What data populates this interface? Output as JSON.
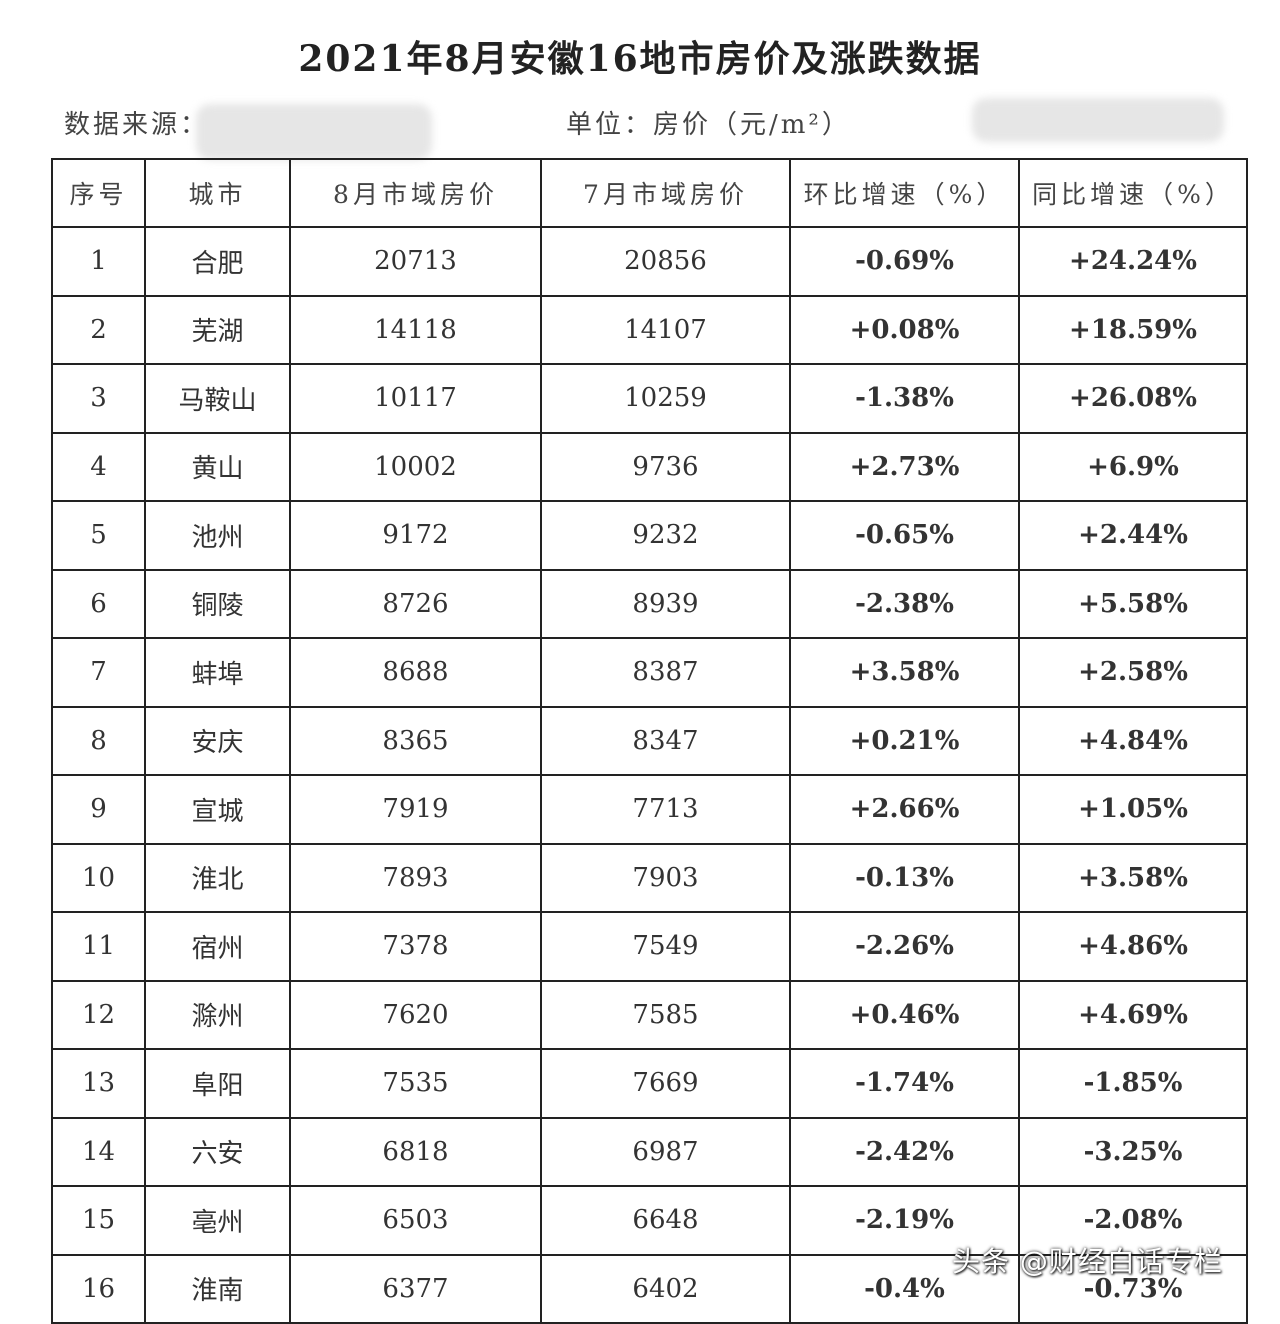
{
  "title": "2021年8月安徽16地市房价及涨跌数据",
  "source_label": "数据来源：",
  "unit_label": "单位：房价（元/m²）",
  "columns": [
    "序号",
    "城市",
    "8月市域房价",
    "7月市域房价",
    "环比增速（%）",
    "同比增速（%）"
  ],
  "rows": [
    {
      "no": "1",
      "city": "合肥",
      "aug": "20713",
      "jul": "20856",
      "mom": "-0.69%",
      "yoy": "+24.24%"
    },
    {
      "no": "2",
      "city": "芜湖",
      "aug": "14118",
      "jul": "14107",
      "mom": "+0.08%",
      "yoy": "+18.59%"
    },
    {
      "no": "3",
      "city": "马鞍山",
      "aug": "10117",
      "jul": "10259",
      "mom": "-1.38%",
      "yoy": "+26.08%"
    },
    {
      "no": "4",
      "city": "黄山",
      "aug": "10002",
      "jul": "9736",
      "mom": "+2.73%",
      "yoy": "+6.9%"
    },
    {
      "no": "5",
      "city": "池州",
      "aug": "9172",
      "jul": "9232",
      "mom": "-0.65%",
      "yoy": "+2.44%"
    },
    {
      "no": "6",
      "city": "铜陵",
      "aug": "8726",
      "jul": "8939",
      "mom": "-2.38%",
      "yoy": "+5.58%"
    },
    {
      "no": "7",
      "city": "蚌埠",
      "aug": "8688",
      "jul": "8387",
      "mom": "+3.58%",
      "yoy": "+2.58%"
    },
    {
      "no": "8",
      "city": "安庆",
      "aug": "8365",
      "jul": "8347",
      "mom": "+0.21%",
      "yoy": "+4.84%"
    },
    {
      "no": "9",
      "city": "宣城",
      "aug": "7919",
      "jul": "7713",
      "mom": "+2.66%",
      "yoy": "+1.05%"
    },
    {
      "no": "10",
      "city": "淮北",
      "aug": "7893",
      "jul": "7903",
      "mom": "-0.13%",
      "yoy": "+3.58%"
    },
    {
      "no": "11",
      "city": "宿州",
      "aug": "7378",
      "jul": "7549",
      "mom": "-2.26%",
      "yoy": "+4.86%"
    },
    {
      "no": "12",
      "city": "滁州",
      "aug": "7620",
      "jul": "7585",
      "mom": "+0.46%",
      "yoy": "+4.69%"
    },
    {
      "no": "13",
      "city": "阜阳",
      "aug": "7535",
      "jul": "7669",
      "mom": "-1.74%",
      "yoy": "-1.85%"
    },
    {
      "no": "14",
      "city": "六安",
      "aug": "6818",
      "jul": "6987",
      "mom": "-2.42%",
      "yoy": "-3.25%"
    },
    {
      "no": "15",
      "city": "亳州",
      "aug": "6503",
      "jul": "6648",
      "mom": "-2.19%",
      "yoy": "-2.08%"
    },
    {
      "no": "16",
      "city": "淮南",
      "aug": "6377",
      "jul": "6402",
      "mom": "-0.4%",
      "yoy": "-0.73%"
    }
  ],
  "colors": {
    "up": "#c8303c",
    "down": "#2f9c5b"
  },
  "watermark": "头条 @财经白话专栏"
}
